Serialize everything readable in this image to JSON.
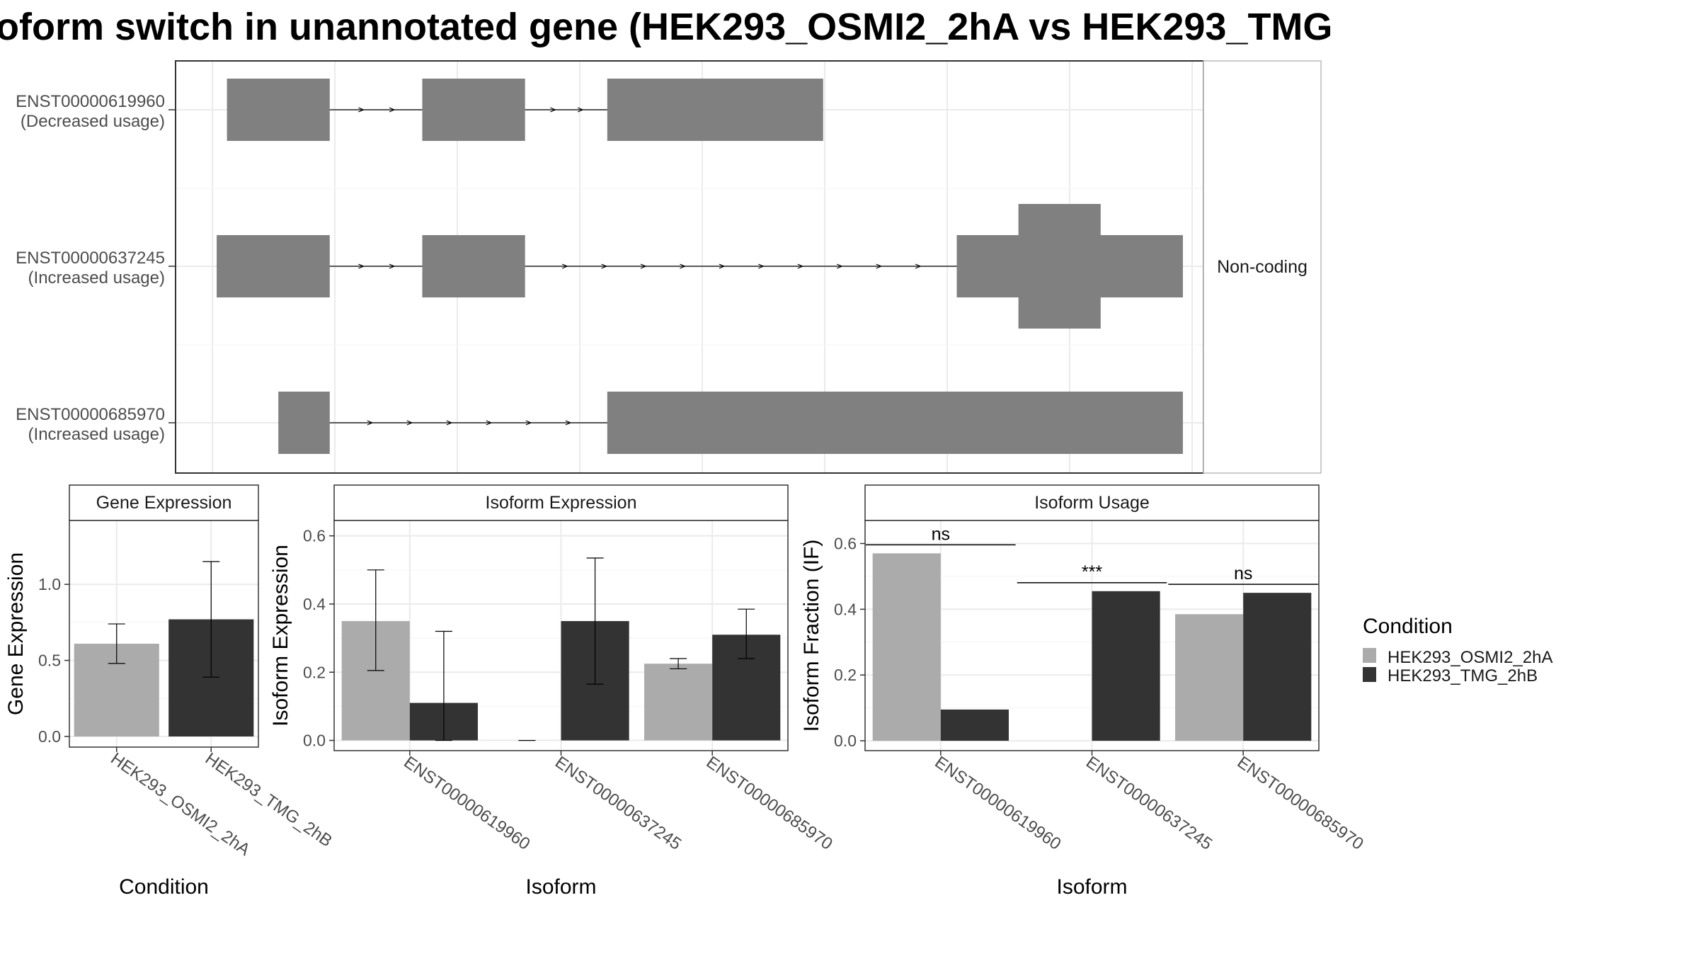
{
  "title": "oform switch in unannotated gene (HEK293_OSMI2_2hA vs HEK293_TMG",
  "colors": {
    "cond_a": "#ababab",
    "cond_b": "#333333",
    "exon": "#808080",
    "grid": "#ebebeb",
    "border": "#333333",
    "strip": "#ffffff"
  },
  "legend": {
    "title": "Condition",
    "items": [
      {
        "label": "HEK293_OSMI2_2hA",
        "color": "#ababab"
      },
      {
        "label": "HEK293_TMG_2hB",
        "color": "#333333"
      }
    ]
  },
  "structure": {
    "strip_label": "Non-coding",
    "isoforms": [
      {
        "id": "ENST00000619960",
        "note": "(Decreased usage)",
        "exons": [
          [
            0.05,
            0.15,
            "thin"
          ],
          [
            0.24,
            0.34,
            "thin"
          ],
          [
            0.42,
            0.63,
            "thin"
          ]
        ]
      },
      {
        "id": "ENST00000637245",
        "note": "(Increased usage)",
        "exons": [
          [
            0.04,
            0.15,
            "thin"
          ],
          [
            0.24,
            0.34,
            "thin"
          ],
          [
            0.76,
            0.98,
            "thin"
          ],
          [
            0.82,
            0.9,
            "thick"
          ]
        ]
      },
      {
        "id": "ENST00000685970",
        "note": "(Increased usage)",
        "exons": [
          [
            0.1,
            0.15,
            "thin"
          ],
          [
            0.42,
            0.98,
            "thin"
          ]
        ]
      }
    ]
  },
  "chart_data": [
    {
      "type": "bar",
      "title": "Gene Expression",
      "xlabel": "Condition",
      "ylabel": "Gene Expression",
      "categories": [
        "HEK293_OSMI2_2hA",
        "HEK293_TMG_2hB"
      ],
      "series": [
        {
          "name": "HEK293_OSMI2_2hA",
          "values": [
            0.61,
            null
          ],
          "error_low": [
            0.48,
            null
          ],
          "error_high": [
            0.74,
            null
          ]
        },
        {
          "name": "HEK293_TMG_2hB",
          "values": [
            null,
            0.77
          ],
          "error_low": [
            null,
            0.39
          ],
          "error_high": [
            null,
            1.15
          ]
        }
      ],
      "yticks": [
        0.0,
        0.5,
        1.0
      ],
      "ytick_labels": [
        "0.0",
        "0.5",
        "1.0"
      ],
      "ylim": [
        -0.07,
        1.42
      ],
      "grid": true
    },
    {
      "type": "bar",
      "title": "Isoform Expression",
      "xlabel": "Isoform",
      "ylabel": "Isoform Expression",
      "categories": [
        "ENST00000619960",
        "ENST00000637245",
        "ENST00000685970"
      ],
      "series": [
        {
          "name": "HEK293_OSMI2_2hA",
          "values": [
            0.35,
            0.0,
            0.225
          ],
          "error_low": [
            0.205,
            0.0,
            0.21
          ],
          "error_high": [
            0.5,
            0.0,
            0.24
          ]
        },
        {
          "name": "HEK293_TMG_2hB",
          "values": [
            0.11,
            0.35,
            0.31
          ],
          "error_low": [
            0.0,
            0.165,
            0.24
          ],
          "error_high": [
            0.32,
            0.535,
            0.385
          ]
        }
      ],
      "yticks": [
        0.0,
        0.2,
        0.4,
        0.6
      ],
      "ytick_labels": [
        "0.0",
        "0.2",
        "0.4",
        "0.6"
      ],
      "ylim": [
        -0.03,
        0.645
      ],
      "grid": true
    },
    {
      "type": "bar",
      "title": "Isoform Usage",
      "xlabel": "Isoform",
      "ylabel": "Isoform Fraction (IF)",
      "categories": [
        "ENST00000619960",
        "ENST00000637245",
        "ENST00000685970"
      ],
      "series": [
        {
          "name": "HEK293_OSMI2_2hA",
          "values": [
            0.57,
            0.0,
            0.385
          ]
        },
        {
          "name": "HEK293_TMG_2hB",
          "values": [
            0.095,
            0.455,
            0.45
          ]
        }
      ],
      "significance": [
        "ns",
        "***",
        "ns"
      ],
      "yticks": [
        0.0,
        0.2,
        0.4,
        0.6
      ],
      "ytick_labels": [
        "0.0",
        "0.2",
        "0.4",
        "0.6"
      ],
      "ylim": [
        -0.03,
        0.67
      ],
      "grid": true
    }
  ]
}
